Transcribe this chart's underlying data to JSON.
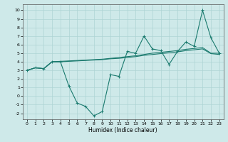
{
  "xlabel": "Humidex (Indice chaleur)",
  "background_color": "#cee9e9",
  "grid_color": "#add4d4",
  "line_color": "#1a7a6e",
  "xlim": [
    -0.5,
    23.5
  ],
  "ylim": [
    -2.7,
    10.7
  ],
  "xticks": [
    0,
    1,
    2,
    3,
    4,
    5,
    6,
    7,
    8,
    9,
    10,
    11,
    12,
    13,
    14,
    15,
    16,
    17,
    18,
    19,
    20,
    21,
    22,
    23
  ],
  "yticks": [
    -2,
    -1,
    0,
    1,
    2,
    3,
    4,
    5,
    6,
    7,
    8,
    9,
    10
  ],
  "series1_x": [
    0,
    1,
    2,
    3,
    4,
    5,
    6,
    7,
    8,
    9,
    10,
    11,
    12,
    13,
    14,
    15,
    16,
    17,
    18,
    19,
    20,
    21,
    22,
    23
  ],
  "series1_y": [
    3.0,
    3.3,
    3.2,
    4.0,
    4.0,
    1.2,
    -0.8,
    -1.2,
    -2.3,
    -1.8,
    2.5,
    2.3,
    5.2,
    5.0,
    7.0,
    5.5,
    5.3,
    3.7,
    5.2,
    6.3,
    5.8,
    10.0,
    6.8,
    5.0
  ],
  "series2_x": [
    0,
    1,
    2,
    3,
    4,
    5,
    6,
    7,
    8,
    9,
    10,
    11,
    12,
    13,
    14,
    15,
    16,
    17,
    18,
    19,
    20,
    21,
    22,
    23
  ],
  "series2_y": [
    3.0,
    3.3,
    3.2,
    4.0,
    4.05,
    4.1,
    4.15,
    4.2,
    4.25,
    4.3,
    4.4,
    4.5,
    4.6,
    4.7,
    4.85,
    5.0,
    5.1,
    5.2,
    5.3,
    5.45,
    5.55,
    5.65,
    5.0,
    5.0
  ],
  "series3_x": [
    0,
    1,
    2,
    3,
    4,
    5,
    6,
    7,
    8,
    9,
    10,
    11,
    12,
    13,
    14,
    15,
    16,
    17,
    18,
    19,
    20,
    21,
    22,
    23
  ],
  "series3_y": [
    3.0,
    3.3,
    3.2,
    4.0,
    4.0,
    4.05,
    4.1,
    4.15,
    4.2,
    4.25,
    4.35,
    4.4,
    4.5,
    4.6,
    4.75,
    4.85,
    4.95,
    5.05,
    5.15,
    5.3,
    5.4,
    5.5,
    4.95,
    4.85
  ]
}
